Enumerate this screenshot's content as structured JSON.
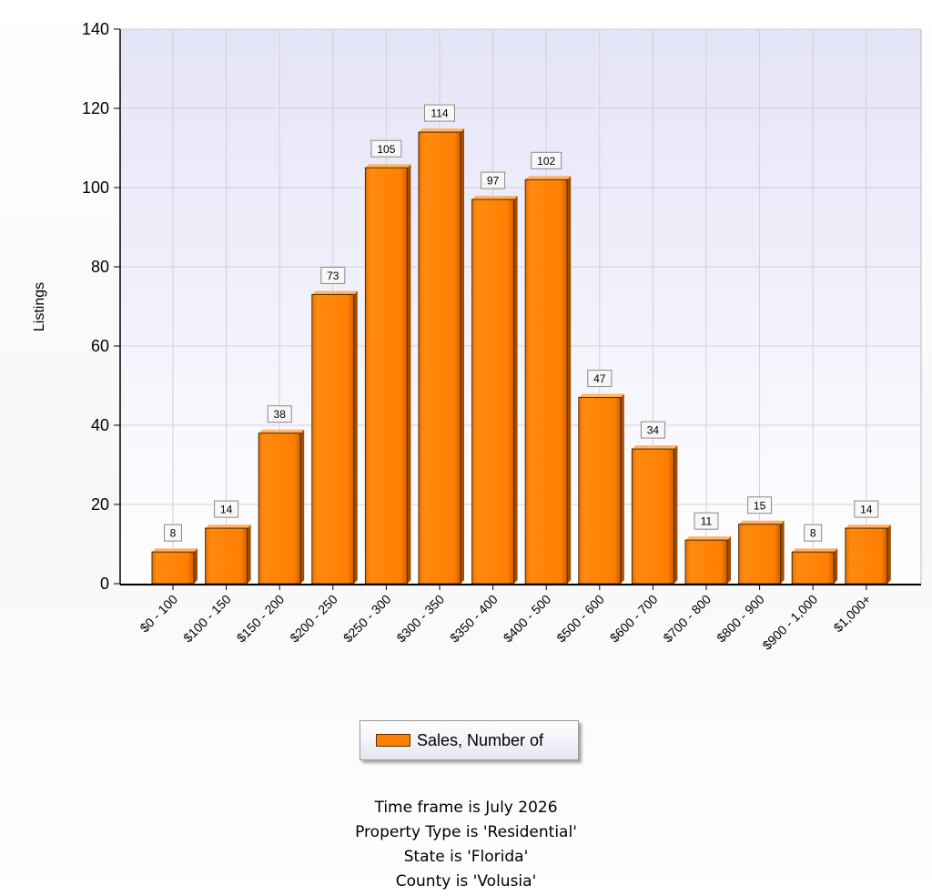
{
  "chart_data": {
    "type": "bar",
    "title": "",
    "xlabel": "",
    "ylabel": "Listings",
    "ylim": [
      0,
      140
    ],
    "yticks": [
      0,
      20,
      40,
      60,
      80,
      100,
      120,
      140
    ],
    "grid": true,
    "legend_position": "bottom-center",
    "categories": [
      "$0 - 100",
      "$100 - 150",
      "$150 - 200",
      "$200 - 250",
      "$250 - 300",
      "$300 - 350",
      "$350 - 400",
      "$400 - 500",
      "$500 - 600",
      "$600 - 700",
      "$700 - 800",
      "$800 - 900",
      "$900 - 1,000",
      "$1,000+"
    ],
    "series": [
      {
        "name": "Sales, Number of",
        "color": "#ff8000",
        "values": [
          8,
          14,
          38,
          73,
          105,
          114,
          97,
          102,
          47,
          34,
          11,
          15,
          8,
          14
        ]
      }
    ]
  },
  "notes": {
    "time_frame": "Time frame is July 2026",
    "property_type": "Property Type is 'Residential'",
    "state": "State is 'Florida'",
    "county": "County is 'Volusia'"
  }
}
